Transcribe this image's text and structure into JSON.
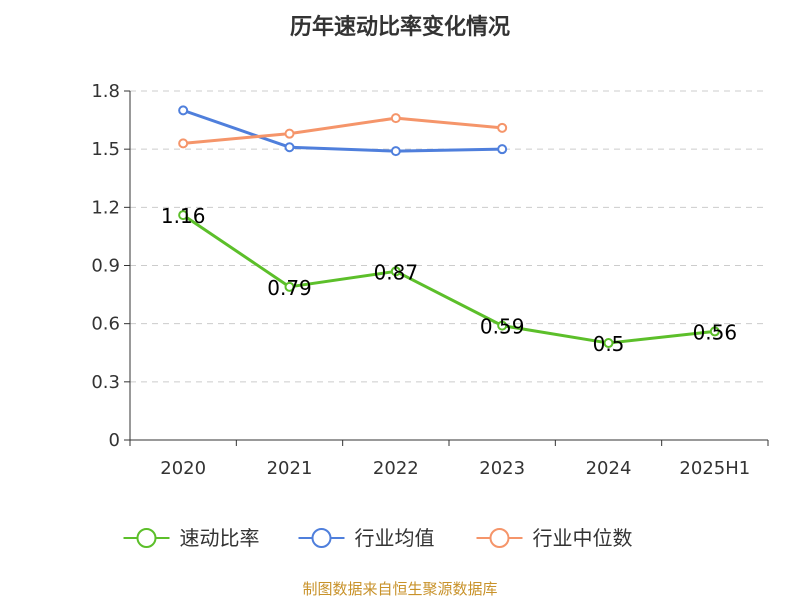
{
  "chart_data": {
    "type": "line",
    "title": "历年速动比率变化情况",
    "categories": [
      "2020",
      "2021",
      "2022",
      "2023",
      "2024",
      "2025H1"
    ],
    "y_ticks": [
      "0",
      "0.3",
      "0.6",
      "0.9",
      "1.2",
      "1.5",
      "1.8"
    ],
    "ylim": [
      0,
      1.8
    ],
    "grid": true,
    "legend_position": "bottom",
    "series": [
      {
        "name": "速动比率",
        "color": "#5cbf2a",
        "values": [
          1.16,
          0.79,
          0.87,
          0.59,
          0.5,
          0.56
        ],
        "labels": [
          "1.16",
          "0.79",
          "0.87",
          "0.59",
          "0.5",
          "0.56"
        ],
        "show_labels": true
      },
      {
        "name": "行业均值",
        "color": "#4f7fdc",
        "values": [
          1.7,
          1.51,
          1.49,
          1.5,
          null,
          null
        ],
        "show_labels": false
      },
      {
        "name": "行业中位数",
        "color": "#f5956a",
        "values": [
          1.53,
          1.58,
          1.66,
          1.61,
          null,
          null
        ],
        "show_labels": false
      }
    ],
    "source": "制图数据来自恒生聚源数据库"
  }
}
